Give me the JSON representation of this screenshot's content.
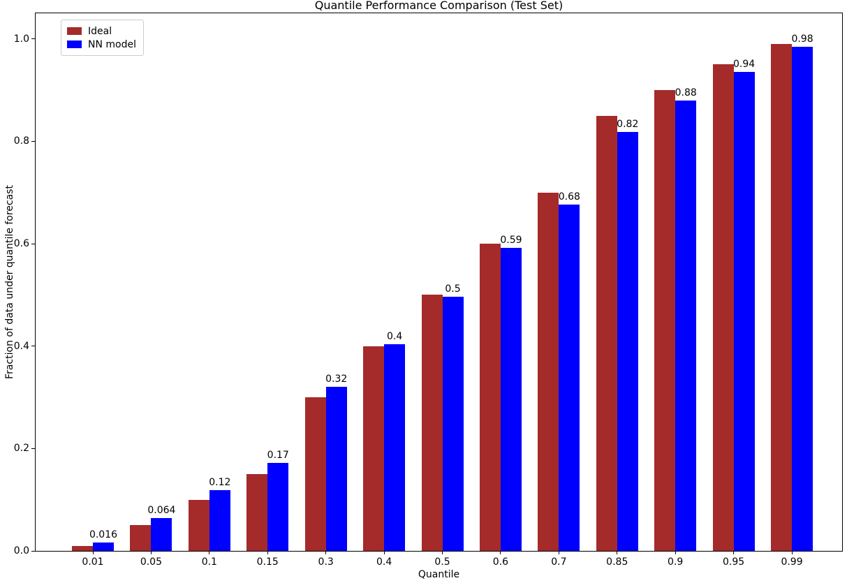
{
  "chart_data": {
    "type": "bar",
    "title": "Quantile Performance Comparison (Test Set)",
    "xlabel": "Quantile",
    "ylabel": "Fraction of data under quantile forecast",
    "categories": [
      "0.01",
      "0.05",
      "0.1",
      "0.15",
      "0.3",
      "0.4",
      "0.5",
      "0.6",
      "0.7",
      "0.85",
      "0.9",
      "0.95",
      "0.99"
    ],
    "series": [
      {
        "name": "Ideal",
        "color": "#a52a2a",
        "values": [
          0.01,
          0.05,
          0.1,
          0.15,
          0.3,
          0.4,
          0.5,
          0.6,
          0.7,
          0.85,
          0.9,
          0.95,
          0.99
        ]
      },
      {
        "name": "NN model",
        "color": "#0000ff",
        "values": [
          0.016,
          0.064,
          0.118,
          0.172,
          0.32,
          0.403,
          0.497,
          0.592,
          0.676,
          0.818,
          0.879,
          0.936,
          0.984
        ],
        "value_labels": [
          "0.016",
          "0.064",
          "0.12",
          "0.17",
          "0.32",
          "0.4",
          "0.5",
          "0.59",
          "0.68",
          "0.82",
          "0.88",
          "0.94",
          "0.98"
        ]
      }
    ],
    "yticks": [
      "0.0",
      "0.2",
      "0.4",
      "0.6",
      "0.8",
      "1.0"
    ],
    "ylim": [
      0,
      1.05
    ],
    "grid": false,
    "legend": {
      "position": "upper-left",
      "entries": [
        "Ideal",
        "NN model"
      ]
    }
  }
}
